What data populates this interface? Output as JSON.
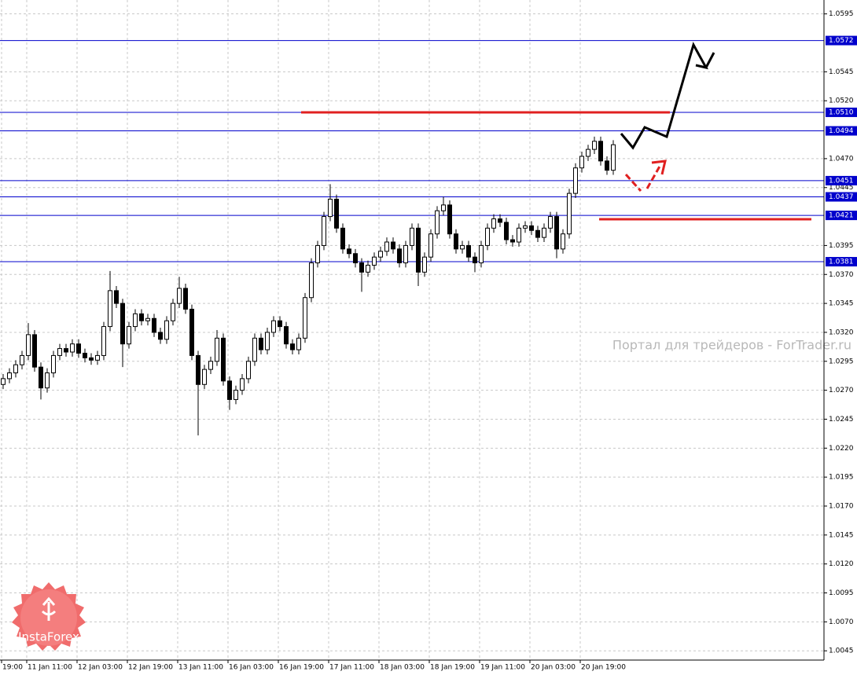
{
  "chart_data": {
    "type": "candlestick",
    "ylim": [
      1.0037,
      1.0607
    ],
    "yticks": [
      1.0595,
      1.0545,
      {
        "value": 1.052,
        "label": "1.0520"
      },
      {
        "value": 1.047,
        "label": "1.0470"
      },
      1.0445,
      1.0395,
      {
        "value": 1.037,
        "label": "1.0370"
      },
      1.0345,
      {
        "value": 1.032,
        "label": "1.0320"
      },
      1.0295,
      {
        "value": 1.027,
        "label": "1.0270"
      },
      1.0245,
      {
        "value": 1.022,
        "label": "1.0220"
      },
      1.0195,
      {
        "value": 1.017,
        "label": "1.0170"
      },
      1.0145,
      {
        "value": 1.012,
        "label": "1.0120"
      },
      1.0095,
      {
        "value": 1.007,
        "label": "1.0070"
      },
      1.0045
    ],
    "grid": true,
    "xlabels": [
      "19:00",
      "11 Jan 11:00",
      "12 Jan 03:00",
      "12 Jan 19:00",
      "13 Jan 11:00",
      "16 Jan 03:00",
      "16 Jan 19:00",
      "17 Jan 11:00",
      "18 Jan 03:00",
      "18 Jan 19:00",
      "19 Jan 11:00",
      "20 Jan 03:00",
      "20 Jan 19:00"
    ],
    "levels": [
      1.0572,
      {
        "value": 1.051,
        "label": "1.0510"
      },
      1.0494,
      1.0451,
      1.0437,
      1.0421,
      1.0381
    ],
    "level_color": "#0000cc",
    "open": [
      1.0275,
      1.028,
      1.0285,
      1.0292,
      1.03,
      1.0318,
      1.029,
      1.0272,
      1.0285,
      1.03,
      1.0306,
      1.0303,
      1.031,
      1.0302,
      1.0298,
      1.0296,
      1.03,
      1.0325,
      1.0356,
      1.0345,
      1.031,
      1.0325,
      1.0336,
      1.033,
      1.0332,
      1.032,
      1.0314,
      1.033,
      1.0345,
      1.0358,
      1.034,
      1.03,
      1.0275,
      1.0288,
      1.0295,
      1.0315,
      1.0278,
      1.0262,
      1.027,
      1.028,
      1.0295,
      1.0315,
      1.0305,
      1.032,
      1.033,
      1.0325,
      1.031,
      1.0305,
      1.0315,
      1.035,
      1.038,
      1.0395,
      1.042,
      1.0435,
      1.041,
      1.0392,
      1.0388,
      1.038,
      1.0372,
      1.0378,
      1.0385,
      1.039,
      1.0398,
      1.0392,
      1.038,
      1.0395,
      1.041,
      1.0372,
      1.0385,
      1.0405,
      1.0425,
      1.043,
      1.0405,
      1.0392,
      1.0395,
      1.0385,
      1.038,
      1.0395,
      1.041,
      1.0418,
      1.0415,
      1.04,
      1.0398,
      1.041,
      1.0412,
      1.0408,
      1.0402,
      1.041,
      1.042,
      1.0392,
      1.0405,
      1.044,
      1.0462,
      1.0472,
      1.0478,
      1.0485,
      1.0468,
      1.046
    ],
    "high": [
      1.0284,
      1.0289,
      1.0296,
      1.0304,
      1.0328,
      1.0322,
      1.0294,
      1.0289,
      1.0304,
      1.031,
      1.031,
      1.0314,
      1.0314,
      1.0306,
      1.0302,
      1.0304,
      1.0329,
      1.0373,
      1.036,
      1.0349,
      1.0329,
      1.034,
      1.034,
      1.0336,
      1.0336,
      1.0324,
      1.0334,
      1.0349,
      1.0368,
      1.0362,
      1.0344,
      1.0304,
      1.0292,
      1.0299,
      1.0322,
      1.0319,
      1.0282,
      1.0274,
      1.0284,
      1.0299,
      1.0319,
      1.0319,
      1.0324,
      1.0334,
      1.0334,
      1.0329,
      1.0314,
      1.0319,
      1.0354,
      1.0384,
      1.0399,
      1.0424,
      1.0448,
      1.0439,
      1.0414,
      1.0396,
      1.0392,
      1.0384,
      1.0382,
      1.0389,
      1.0394,
      1.0402,
      1.0402,
      1.0396,
      1.0399,
      1.0414,
      1.0414,
      1.0389,
      1.0409,
      1.0429,
      1.0437,
      1.0434,
      1.0409,
      1.0399,
      1.0399,
      1.0389,
      1.0399,
      1.0414,
      1.0422,
      1.0422,
      1.0419,
      1.0404,
      1.0414,
      1.0416,
      1.0416,
      1.0412,
      1.0414,
      1.0424,
      1.0424,
      1.0409,
      1.0444,
      1.0466,
      1.0476,
      1.0482,
      1.0489,
      1.0489,
      1.0472,
      1.0486
    ],
    "low": [
      1.0271,
      1.0276,
      1.0281,
      1.0288,
      1.0296,
      1.0286,
      1.0262,
      1.0268,
      1.0281,
      1.0296,
      1.0299,
      1.0299,
      1.0298,
      1.0294,
      1.0292,
      1.0292,
      1.0296,
      1.0321,
      1.0341,
      1.029,
      1.0306,
      1.0321,
      1.0326,
      1.0326,
      1.0316,
      1.031,
      1.031,
      1.0326,
      1.0341,
      1.0336,
      1.0296,
      1.0231,
      1.0271,
      1.0284,
      1.0291,
      1.0274,
      1.0253,
      1.0258,
      1.0266,
      1.0276,
      1.0291,
      1.0301,
      1.0301,
      1.0316,
      1.0321,
      1.0306,
      1.0301,
      1.0301,
      1.0311,
      1.0346,
      1.0376,
      1.0391,
      1.0416,
      1.0406,
      1.0388,
      1.0384,
      1.0376,
      1.0355,
      1.0368,
      1.0374,
      1.0381,
      1.0386,
      1.0388,
      1.0376,
      1.0376,
      1.0391,
      1.036,
      1.0368,
      1.0381,
      1.0401,
      1.0421,
      1.0401,
      1.0388,
      1.0388,
      1.0381,
      1.0372,
      1.0376,
      1.0391,
      1.0406,
      1.0411,
      1.0396,
      1.0394,
      1.0394,
      1.0406,
      1.0404,
      1.0398,
      1.0398,
      1.0406,
      1.0384,
      1.0388,
      1.0401,
      1.0436,
      1.0458,
      1.0468,
      1.0474,
      1.0464,
      1.0456,
      1.0456
    ],
    "close": [
      1.028,
      1.0285,
      1.0292,
      1.03,
      1.0318,
      1.029,
      1.0272,
      1.0285,
      1.03,
      1.0306,
      1.0303,
      1.031,
      1.0302,
      1.0298,
      1.0296,
      1.03,
      1.0325,
      1.0356,
      1.0345,
      1.031,
      1.0325,
      1.0336,
      1.033,
      1.0332,
      1.032,
      1.0314,
      1.033,
      1.0345,
      1.0358,
      1.034,
      1.03,
      1.0275,
      1.0288,
      1.0295,
      1.0315,
      1.0278,
      1.0262,
      1.027,
      1.028,
      1.0295,
      1.0315,
      1.0305,
      1.032,
      1.033,
      1.0325,
      1.031,
      1.0305,
      1.0315,
      1.035,
      1.038,
      1.0395,
      1.042,
      1.0435,
      1.041,
      1.0392,
      1.0388,
      1.038,
      1.0372,
      1.0378,
      1.0385,
      1.039,
      1.0398,
      1.0392,
      1.038,
      1.0395,
      1.041,
      1.0372,
      1.0385,
      1.0405,
      1.0425,
      1.043,
      1.0405,
      1.0392,
      1.0395,
      1.0385,
      1.038,
      1.0395,
      1.041,
      1.0418,
      1.0415,
      1.04,
      1.0398,
      1.041,
      1.0412,
      1.0408,
      1.0402,
      1.041,
      1.042,
      1.0392,
      1.0405,
      1.044,
      1.0462,
      1.0472,
      1.0478,
      1.0485,
      1.0468,
      1.046,
      1.0482
    ],
    "watermark": "Портал для трейдеров - ForTrader.ru",
    "logo": "InstaForex"
  }
}
